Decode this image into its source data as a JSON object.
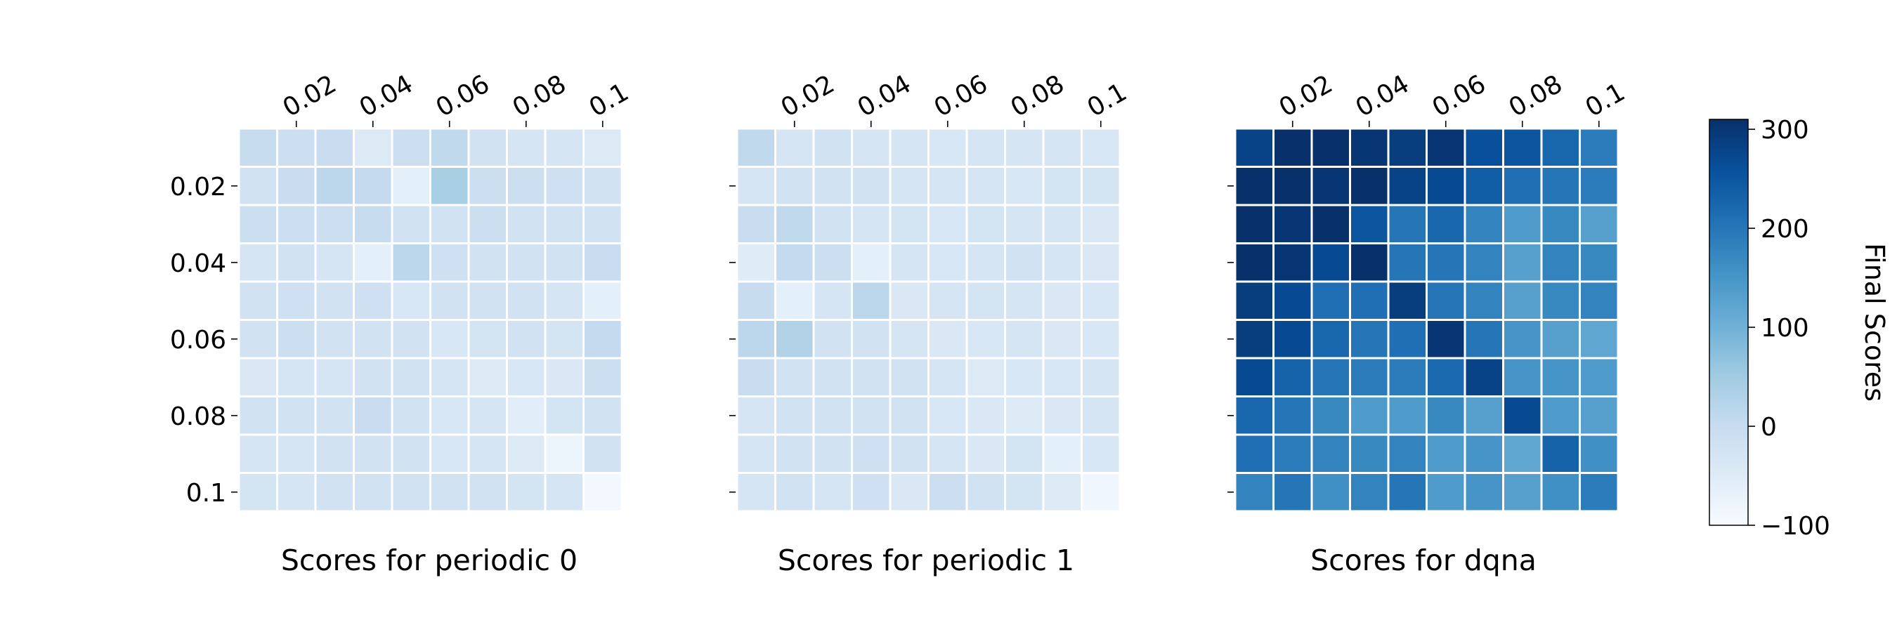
{
  "chart_data": {
    "type": "heatmap",
    "x_ticks": [
      "0.02",
      "0.04",
      "0.06",
      "0.08",
      "0.1"
    ],
    "y_ticks": [
      "0.02",
      "0.04",
      "0.06",
      "0.08",
      "0.1"
    ],
    "colorbar": {
      "label": "Final Scores",
      "range": [
        -100,
        310
      ],
      "ticks": [
        "300",
        "200",
        "100",
        "0",
        "−100"
      ],
      "tick_values": [
        300,
        200,
        100,
        0,
        -100
      ],
      "colormap": "Blues"
    },
    "panels": [
      {
        "title": "Scores for periodic 0",
        "values": [
          [
            0,
            -10,
            -5,
            -45,
            -10,
            10,
            -20,
            -30,
            -30,
            -45
          ],
          [
            -20,
            -5,
            15,
            5,
            -60,
            40,
            -10,
            -10,
            -15,
            -20
          ],
          [
            -10,
            -10,
            -10,
            0,
            -20,
            -20,
            -10,
            -20,
            -20,
            -20
          ],
          [
            -30,
            -20,
            -30,
            -60,
            15,
            -15,
            -20,
            -20,
            -20,
            -5
          ],
          [
            -20,
            -15,
            -20,
            -15,
            -35,
            -20,
            -20,
            -20,
            -30,
            -60
          ],
          [
            -20,
            -10,
            -20,
            -20,
            -20,
            -35,
            -25,
            -20,
            -25,
            5
          ],
          [
            -40,
            -30,
            -30,
            -20,
            -20,
            -30,
            -45,
            -35,
            -40,
            -10
          ],
          [
            -20,
            -20,
            -20,
            -5,
            -20,
            -35,
            -30,
            -55,
            -25,
            -20
          ],
          [
            -30,
            -30,
            -20,
            -20,
            -20,
            -35,
            -30,
            -45,
            -80,
            -20
          ],
          [
            -25,
            -30,
            -20,
            -20,
            -20,
            -20,
            -20,
            -25,
            -30,
            -90
          ]
        ]
      },
      {
        "title": "Scores for periodic 1",
        "values": [
          [
            10,
            -30,
            -20,
            -30,
            -30,
            -35,
            -30,
            -30,
            -30,
            -35
          ],
          [
            -30,
            -20,
            -20,
            -20,
            -30,
            -30,
            -30,
            -35,
            -25,
            -25
          ],
          [
            -5,
            10,
            -20,
            -30,
            -25,
            -35,
            -25,
            -30,
            -30,
            -40
          ],
          [
            -50,
            5,
            -10,
            -60,
            -30,
            -35,
            -30,
            -20,
            -30,
            -40
          ],
          [
            0,
            -60,
            -30,
            15,
            -40,
            -30,
            -25,
            -30,
            -40,
            -35
          ],
          [
            15,
            30,
            -20,
            -20,
            -30,
            -40,
            -35,
            -30,
            -40,
            -35
          ],
          [
            -5,
            -20,
            -20,
            -20,
            -20,
            -30,
            -45,
            -35,
            -35,
            -30
          ],
          [
            -30,
            -20,
            -20,
            -20,
            -20,
            -35,
            -40,
            -45,
            -40,
            -30
          ],
          [
            -30,
            -20,
            -20,
            -15,
            -20,
            -30,
            -40,
            -25,
            -60,
            -35
          ],
          [
            -30,
            -20,
            -30,
            -15,
            -40,
            -10,
            -20,
            -25,
            -45,
            -85
          ]
        ]
      },
      {
        "title": "Scores for dqna",
        "values": [
          [
            280,
            310,
            310,
            300,
            290,
            300,
            260,
            250,
            225,
            190
          ],
          [
            310,
            310,
            300,
            310,
            280,
            270,
            240,
            210,
            200,
            190
          ],
          [
            310,
            300,
            310,
            250,
            200,
            225,
            180,
            140,
            170,
            130
          ],
          [
            310,
            300,
            270,
            310,
            200,
            200,
            180,
            130,
            180,
            170
          ],
          [
            290,
            270,
            210,
            210,
            290,
            200,
            180,
            130,
            170,
            180
          ],
          [
            290,
            270,
            225,
            200,
            210,
            300,
            200,
            150,
            130,
            120
          ],
          [
            270,
            230,
            200,
            190,
            190,
            220,
            280,
            150,
            150,
            140
          ],
          [
            225,
            200,
            170,
            140,
            140,
            170,
            130,
            270,
            140,
            130
          ],
          [
            210,
            190,
            180,
            170,
            180,
            140,
            150,
            120,
            230,
            160
          ],
          [
            180,
            200,
            160,
            180,
            200,
            140,
            150,
            130,
            160,
            190
          ]
        ]
      }
    ]
  }
}
